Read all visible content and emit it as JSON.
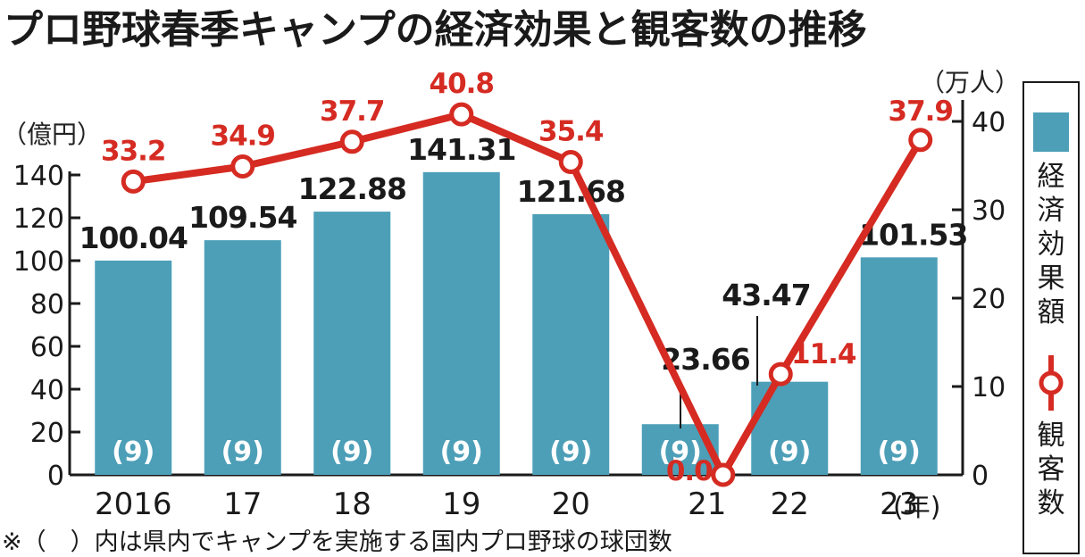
{
  "title": "プロ野球春季キャンプの経済効果と観客数の推移",
  "left_unit": "（億円）",
  "right_unit": "（万人）",
  "year_suffix": "(年)",
  "note": "※（　）内は県内でキャンプを実施する国内プロ野球の球団数",
  "legend": {
    "bar": "経済効果額",
    "line": "観客数"
  },
  "colors": {
    "bar": "#4d9fb8",
    "line": "#d52b22",
    "axis": "#1a1a1a"
  },
  "chart_data": {
    "type": "bar",
    "categories": [
      "2016",
      "17",
      "18",
      "19",
      "20",
      "21",
      "22",
      "23"
    ],
    "series": [
      {
        "name": "経済効果額",
        "axis": "left",
        "values": [
          100.04,
          109.54,
          122.88,
          141.31,
          121.68,
          23.66,
          43.47,
          101.53
        ],
        "labels": [
          "100.04",
          "109.54",
          "122.88",
          "141.31",
          "121.68",
          "23.66",
          "43.47",
          "101.53"
        ]
      },
      {
        "name": "観客数",
        "type": "line",
        "axis": "right",
        "values": [
          33.2,
          34.9,
          37.7,
          40.8,
          35.4,
          0.0,
          11.4,
          37.9
        ],
        "labels": [
          "33.2",
          "34.9",
          "37.7",
          "40.8",
          "35.4",
          "0.0",
          "11.4",
          "37.9"
        ]
      }
    ],
    "team_counts": [
      "(9)",
      "(9)",
      "(9)",
      "(9)",
      "(9)",
      "(9)",
      "(9)",
      "(9)"
    ],
    "ylim_left": [
      0,
      140
    ],
    "yticks_left": [
      "0",
      "20",
      "40",
      "60",
      "80",
      "100",
      "120",
      "140"
    ],
    "ylim_right": [
      0,
      40
    ],
    "yticks_right": [
      "0",
      "10",
      "20",
      "30",
      "40"
    ],
    "grid": false,
    "legend_position": "right"
  }
}
